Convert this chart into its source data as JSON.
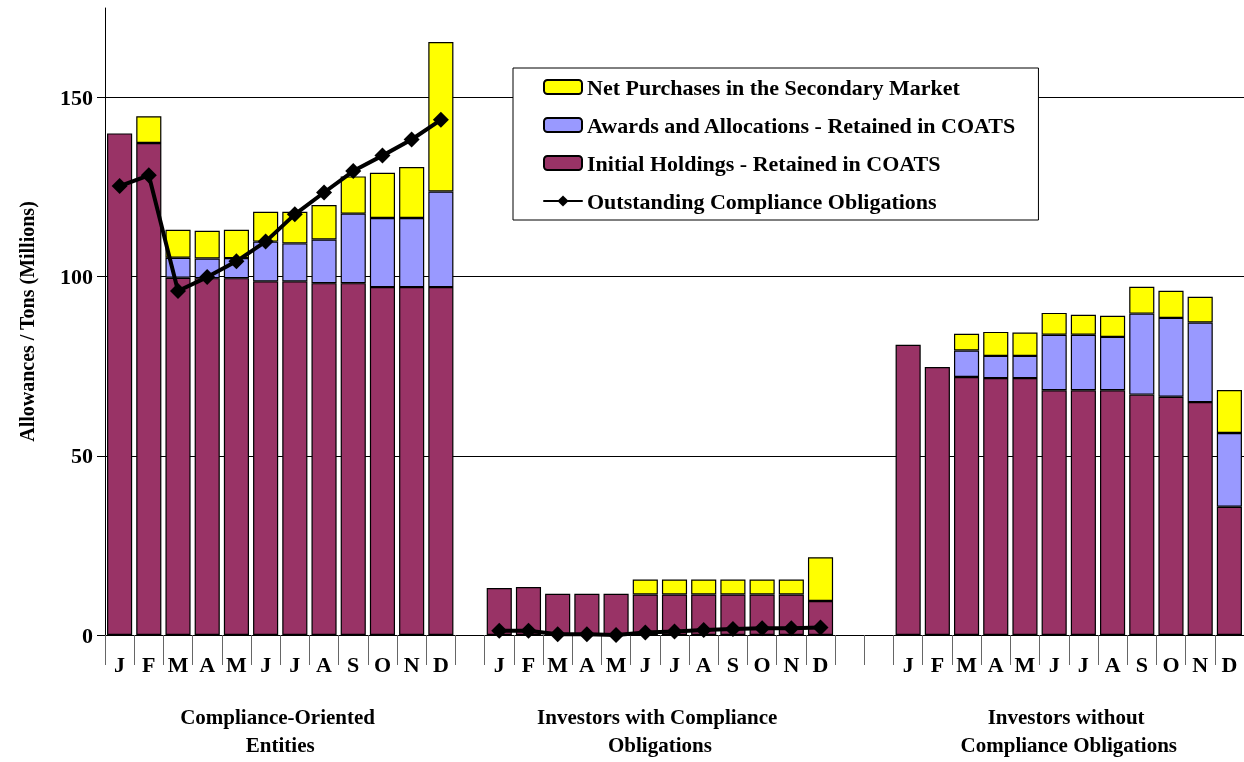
{
  "chart_data": {
    "type": "bar",
    "stacked": true,
    "ylabel": "Allowances / Tons (Millions)",
    "categories": [
      "J",
      "F",
      "M",
      "A",
      "M",
      "J",
      "J",
      "A",
      "S",
      "O",
      "N",
      "D",
      null,
      "J",
      "F",
      "M",
      "A",
      "M",
      "J",
      "J",
      "A",
      "S",
      "O",
      "N",
      "D",
      null,
      null,
      "J",
      "F",
      "M",
      "A",
      "M",
      "J",
      "J",
      "A",
      "S",
      "O",
      "N",
      "D"
    ],
    "series": [
      {
        "name": "Initial Holdings - Retained in COATS",
        "color": "#993366",
        "values": [
          140,
          137.3,
          99.7,
          99.6,
          99.6,
          98.7,
          98.7,
          98.2,
          98.2,
          97.1,
          97.1,
          97.1,
          null,
          13.1,
          13.4,
          11.5,
          11.5,
          11.5,
          11.3,
          11.3,
          11.3,
          11.3,
          11.3,
          11.3,
          9.5,
          null,
          null,
          81,
          74.8,
          72.0,
          71.7,
          71.7,
          68.3,
          68.3,
          68.3,
          67.1,
          66.5,
          65.0,
          35.8
        ]
      },
      {
        "name": "Awards and Allocations - Retained in COATS",
        "color": "#9999ff",
        "values": [
          null,
          null,
          5.6,
          5.5,
          5.6,
          11.1,
          10.6,
          12.2,
          19.4,
          19.3,
          19.3,
          26.7,
          null,
          null,
          null,
          null,
          null,
          null,
          null,
          null,
          null,
          null,
          null,
          null,
          null,
          null,
          null,
          null,
          null,
          7.4,
          6.2,
          6.2,
          15.5,
          15.5,
          14.9,
          22.6,
          22.0,
          22.2,
          20.6
        ]
      },
      {
        "name": "Net Purchases in the Secondary Market",
        "color": "#ffff00",
        "values": [
          null,
          7.5,
          7.8,
          7.7,
          7.9,
          8.3,
          8.8,
          9.6,
          10.4,
          12.6,
          14.2,
          41.7,
          null,
          null,
          null,
          null,
          null,
          null,
          4.2,
          4.2,
          4.2,
          4.2,
          4.2,
          4.2,
          12.2,
          null,
          null,
          null,
          null,
          4.7,
          6.7,
          6.5,
          6.1,
          5.6,
          5.9,
          7.5,
          7.6,
          7.2,
          12.0
        ]
      },
      {
        "name": "Outstanding Compliance Obligations",
        "type": "line",
        "color": "#000000",
        "values": [
          125.3,
          128.3,
          96.0,
          99.9,
          104.3,
          109.8,
          117.4,
          123.5,
          129.5,
          133.8,
          138.3,
          143.8,
          null,
          1.2,
          1.2,
          0.2,
          0.2,
          0,
          0.7,
          1.0,
          1.4,
          1.7,
          1.9,
          1.9,
          2.1,
          null,
          null,
          null,
          null,
          null,
          null,
          null,
          null,
          null,
          null,
          null,
          null,
          null,
          null
        ]
      }
    ],
    "ylim": [
      0,
      175
    ],
    "yticks": [
      0,
      50,
      100,
      150
    ],
    "grid": "y",
    "legend": "top right",
    "marker": "diamond",
    "line_style": "solid",
    "annotations": [
      "Compliance-Oriented Entities",
      "Investors with Compliance Obligations",
      "Investors without Compliance Obligations"
    ]
  }
}
